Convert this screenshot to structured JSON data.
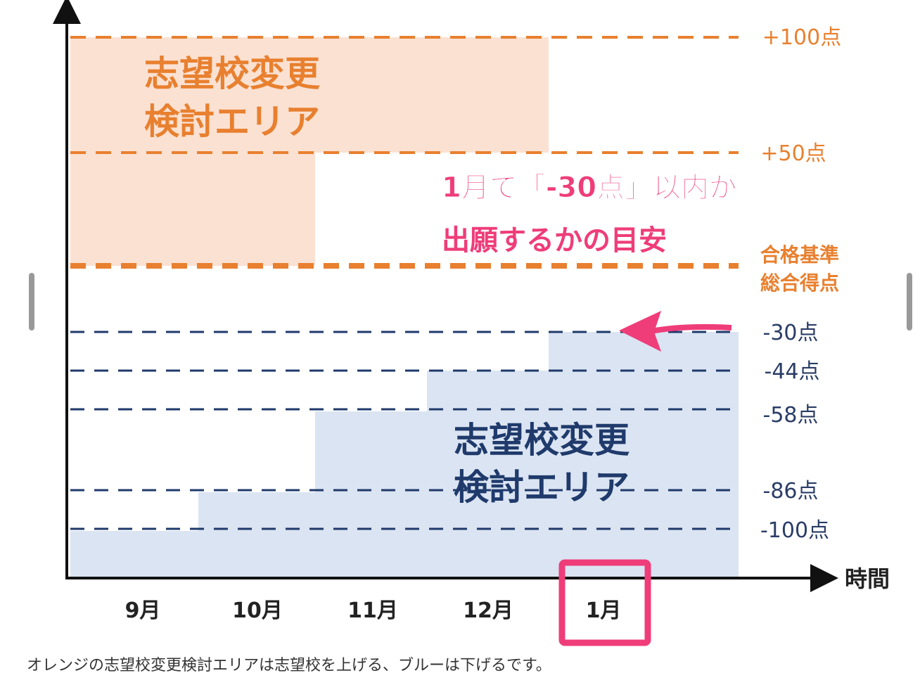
{
  "diagram": {
    "upper_area_label": [
      "志望校変更",
      "検討エリア"
    ],
    "lower_area_label": [
      "志望校変更",
      "検討エリア"
    ],
    "upper_levels": [
      "+100点",
      "+50点"
    ],
    "pass_line_label": [
      "合格基準",
      "総合得点"
    ],
    "lower_levels": [
      "-30点",
      "-44点",
      "-58点",
      "-86点",
      "-100点"
    ],
    "annotation": [
      "1月で「-30点」以内が",
      "出願するかの目安"
    ],
    "months": [
      "9月",
      "10月",
      "11月",
      "12月",
      "1月"
    ],
    "x_axis_label": "時間"
  },
  "caption": "オレンジの志望校変更検討エリアは志望校を上げる、ブルーは下げるです。"
}
